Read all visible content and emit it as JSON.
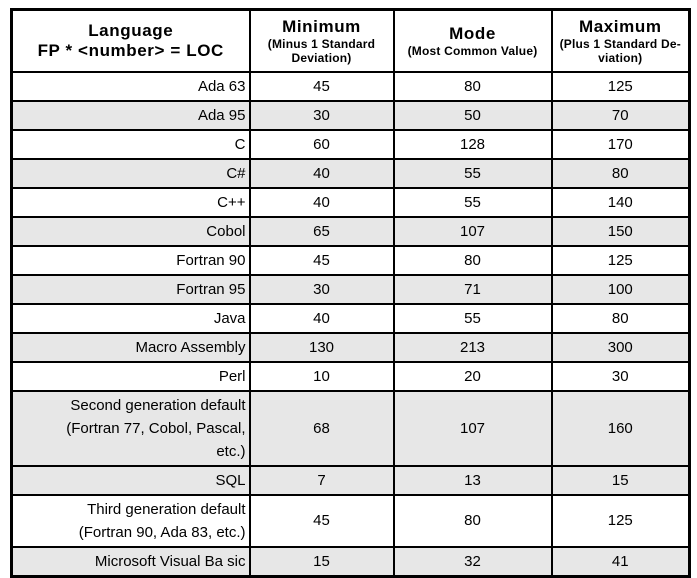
{
  "table": {
    "columns": [
      {
        "title": "Language",
        "subtitle_lines": [
          "FP * <number> = LOC"
        ]
      },
      {
        "title": "Minimum",
        "subtitle_lines": [
          "(Minus 1 Standard",
          "Deviation)"
        ]
      },
      {
        "title": "Mode",
        "subtitle_lines": [
          "(Most Common Value)"
        ]
      },
      {
        "title": "Maximum",
        "subtitle_lines": [
          "(Plus 1 Standard De-",
          "viation)"
        ]
      }
    ],
    "rows": [
      {
        "language": "Ada 63",
        "minimum": "45",
        "mode": "80",
        "maximum": "125",
        "shaded": false
      },
      {
        "language": "Ada 95",
        "minimum": "30",
        "mode": "50",
        "maximum": "70",
        "shaded": true
      },
      {
        "language": "C",
        "minimum": "60",
        "mode": "128",
        "maximum": "170",
        "shaded": false
      },
      {
        "language": "C#",
        "minimum": "40",
        "mode": "55",
        "maximum": "80",
        "shaded": true
      },
      {
        "language": "C++",
        "minimum": "40",
        "mode": "55",
        "maximum": "140",
        "shaded": false
      },
      {
        "language": "Cobol",
        "minimum": "65",
        "mode": "107",
        "maximum": "150",
        "shaded": true
      },
      {
        "language": "Fortran 90",
        "minimum": "45",
        "mode": "80",
        "maximum": "125",
        "shaded": false
      },
      {
        "language": "Fortran 95",
        "minimum": "30",
        "mode": "71",
        "maximum": "100",
        "shaded": true
      },
      {
        "language": "Java",
        "minimum": "40",
        "mode": "55",
        "maximum": "80",
        "shaded": false
      },
      {
        "language": "Macro Assembly",
        "minimum": "130",
        "mode": "213",
        "maximum": "300",
        "shaded": true
      },
      {
        "language": "Perl",
        "minimum": "10",
        "mode": "20",
        "maximum": "30",
        "shaded": false
      },
      {
        "language": "Second generation default\n(Fortran 77, Cobol, Pascal,\netc.)",
        "minimum": "68",
        "mode": "107",
        "maximum": "160",
        "shaded": true
      },
      {
        "language": "SQL",
        "minimum": "7",
        "mode": "13",
        "maximum": "15",
        "shaded": true
      },
      {
        "language": "Third generation default\n(Fortran 90, Ada 83, etc.)",
        "minimum": "45",
        "mode": "80",
        "maximum": "125",
        "shaded": false
      },
      {
        "language": "Microsoft Visual Ba sic",
        "minimum": "15",
        "mode": "32",
        "maximum": "41",
        "shaded": true
      }
    ]
  },
  "colors": {
    "row_shade": "#e7e7e7",
    "border": "#000000",
    "background": "#ffffff"
  }
}
